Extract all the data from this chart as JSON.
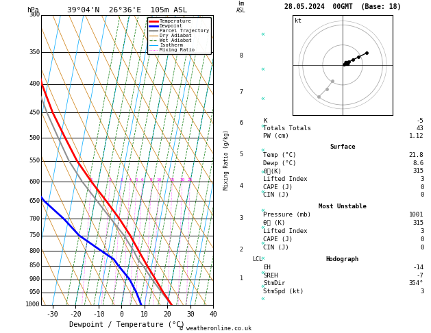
{
  "title_left": "39°04'N  26°36'E  105m ASL",
  "title_right": "28.05.2024  00GMT  (Base: 18)",
  "hpa_label": "hPa",
  "xlabel": "Dewpoint / Temperature (°C)",
  "color_temp": "#ff0000",
  "color_dewp": "#0000ff",
  "color_parcel": "#909090",
  "color_dryadiabat": "#cc7700",
  "color_wetadiabat": "#007700",
  "color_isotherm": "#00aaff",
  "color_mixratio": "#ff00ff",
  "bg_color": "#ffffff",
  "pressure_levels": [
    300,
    350,
    400,
    450,
    500,
    550,
    600,
    650,
    700,
    750,
    800,
    850,
    900,
    950,
    1000
  ],
  "xticks": [
    -30,
    -20,
    -10,
    0,
    10,
    20,
    30,
    40
  ],
  "tmin": -35,
  "tmax": 40,
  "pmin": 300,
  "pmax": 1000,
  "skew": 45,
  "km_asl_ticks": [
    1,
    2,
    3,
    4,
    5,
    6,
    7,
    8
  ],
  "km_asl_pressures": [
    898,
    795,
    698,
    610,
    535,
    470,
    413,
    356
  ],
  "lcl_pressure": 828,
  "lcl_label": "LCL",
  "temp_profile_pressure": [
    1000,
    950,
    900,
    850,
    800,
    750,
    700,
    650,
    600,
    550,
    500,
    450,
    400,
    350,
    300
  ],
  "temp_profile_temp": [
    21.8,
    17.2,
    12.8,
    8.0,
    3.2,
    -1.8,
    -7.8,
    -15.0,
    -23.0,
    -31.0,
    -38.0,
    -45.5,
    -52.5,
    -58.5,
    -63.0
  ],
  "dewp_profile_pressure": [
    1000,
    950,
    900,
    850,
    828,
    800,
    750,
    700,
    650,
    600,
    550,
    500,
    450,
    400,
    350,
    300
  ],
  "dewp_profile_temp": [
    8.6,
    5.5,
    1.5,
    -4.5,
    -7.0,
    -13.0,
    -24.0,
    -32.0,
    -42.0,
    -50.0,
    -57.0,
    -62.0,
    -65.0,
    -67.0,
    -68.0,
    -69.0
  ],
  "parcel_profile_pressure": [
    1000,
    950,
    900,
    850,
    828,
    800,
    750,
    700,
    650,
    600,
    550,
    500,
    450,
    400,
    350,
    300
  ],
  "parcel_profile_temp": [
    21.8,
    16.5,
    11.3,
    6.2,
    3.5,
    1.0,
    -4.5,
    -11.5,
    -19.0,
    -27.0,
    -34.5,
    -41.0,
    -48.0,
    -55.0,
    -61.0,
    -65.0
  ],
  "mix_ratios": [
    1,
    2,
    3,
    4,
    5,
    6,
    8,
    10,
    15,
    20,
    25
  ],
  "wind_arrows": {
    "pressures": [
      975,
      925,
      875,
      825,
      775,
      725,
      675,
      625,
      575,
      525,
      475,
      425,
      375,
      325
    ],
    "color": "#00ccaa"
  },
  "stats": {
    "K": "-5",
    "Totals Totals": "43",
    "PW (cm)": "1.12",
    "surf_temp": "21.8",
    "surf_dewp": "8.6",
    "surf_theta_e": "315",
    "surf_li": "3",
    "surf_cape": "0",
    "surf_cin": "0",
    "mu_pressure": "1001",
    "mu_theta_e": "315",
    "mu_li": "3",
    "mu_cape": "0",
    "mu_cin": "0",
    "hodo_eh": "-14",
    "hodo_sreh": "-7",
    "hodo_stmdir": "354°",
    "hodo_stmspd": "3"
  },
  "hodo_u": [
    0.5,
    1.5,
    3.0,
    5.0,
    8.0,
    12.0
  ],
  "hodo_v": [
    0.2,
    0.8,
    1.5,
    2.5,
    4.0,
    6.0
  ],
  "hodo_storm_u": 2.0,
  "hodo_storm_v": 1.0
}
